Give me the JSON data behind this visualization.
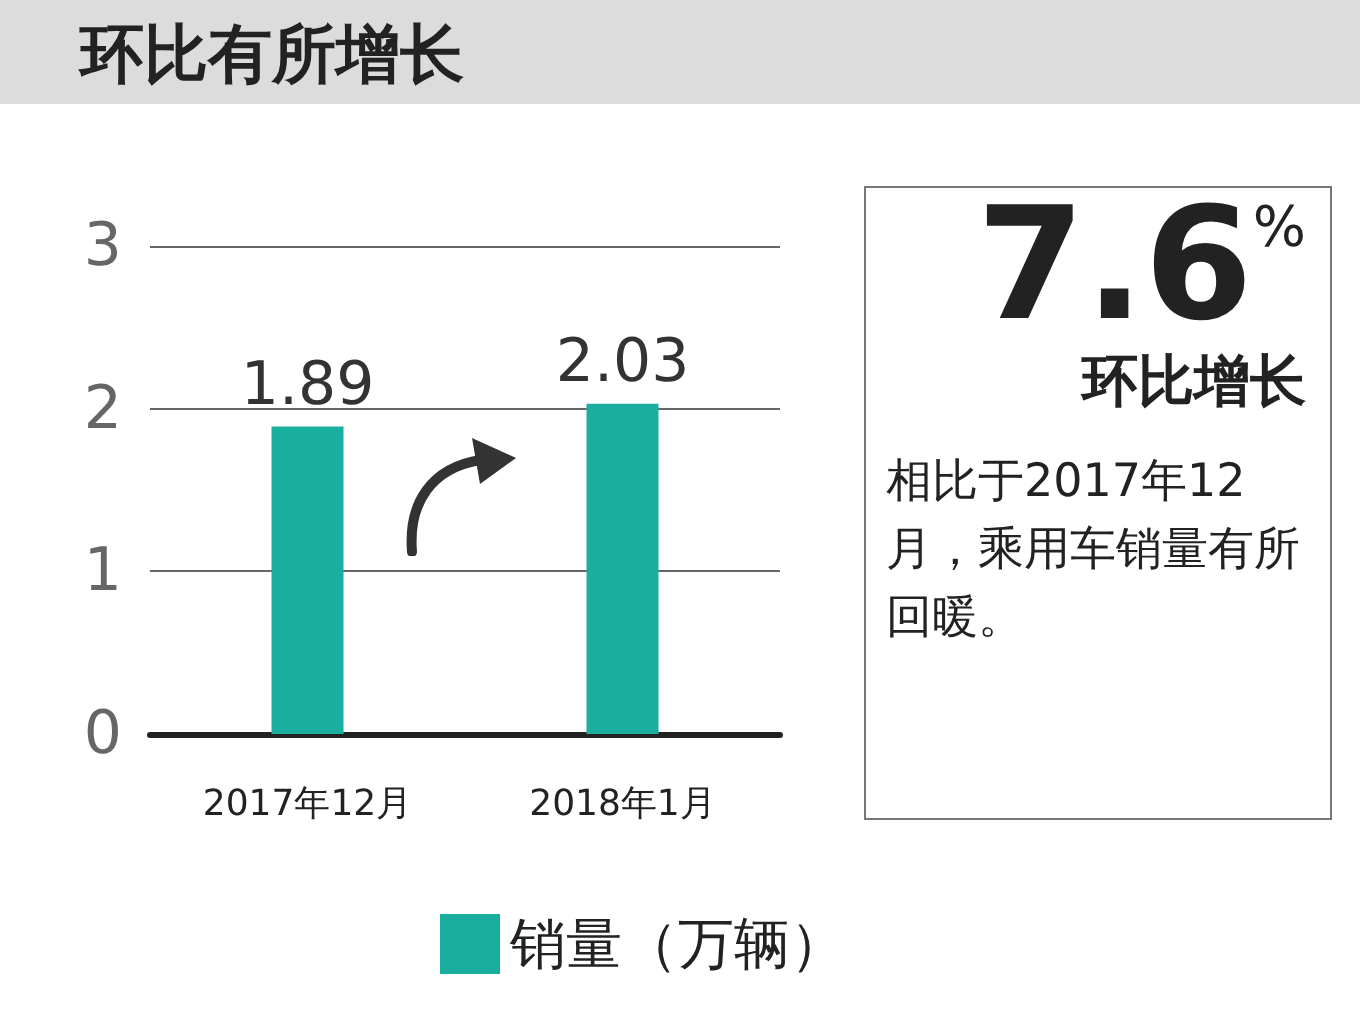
{
  "chart_data": {
    "type": "bar",
    "title": "环比有所增长",
    "categories": [
      "2017年12月",
      "2018年1月"
    ],
    "series": [
      {
        "name": "销量（万辆）",
        "color": "#1aae9f",
        "values": [
          1.89,
          2.03
        ]
      }
    ],
    "ylim": [
      0,
      3
    ],
    "yticks": [
      0,
      1,
      2,
      3
    ],
    "grid": "y",
    "legend": "bottom",
    "data_labels": true,
    "annotations": [
      "7.6$^{%}$",
      "环比增长",
      "相比于2017年12月，乘用车销量有所回暖。"
    ]
  }
}
